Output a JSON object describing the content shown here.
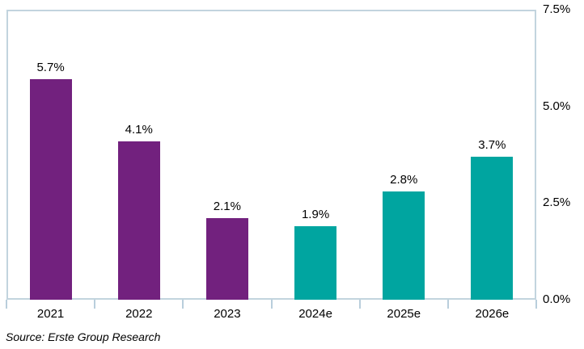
{
  "chart_data": {
    "type": "bar",
    "categories": [
      "2021",
      "2022",
      "2023",
      "2024e",
      "2025e",
      "2026e"
    ],
    "values": [
      5.7,
      4.1,
      2.1,
      1.9,
      2.8,
      3.7
    ],
    "value_labels": [
      "5.7%",
      "4.1%",
      "2.1%",
      "1.9%",
      "2.8%",
      "3.7%"
    ],
    "bar_colors": [
      "#72217E",
      "#72217E",
      "#72217E",
      "#00A5A0",
      "#00A5A0",
      "#00A5A0"
    ],
    "title": "",
    "xlabel": "",
    "ylabel": "",
    "ylim": [
      0,
      7.5
    ],
    "y_tick_labels": [
      "0.0%",
      "2.5%",
      "5.0%",
      "7.5%"
    ],
    "y_tick_values": [
      0,
      2.5,
      5.0,
      7.5
    ],
    "axis_side": "right",
    "grid": false,
    "legend": "none"
  },
  "colors": {
    "actual_bar": "#72217E",
    "forecast_bar": "#00A5A0",
    "plot_border": "#C2D4DE",
    "axis_tick": "#B9CEDC",
    "text": "#000000",
    "background": "#FFFFFF"
  },
  "footer": {
    "source_note": "Source: Erste Group Research"
  }
}
